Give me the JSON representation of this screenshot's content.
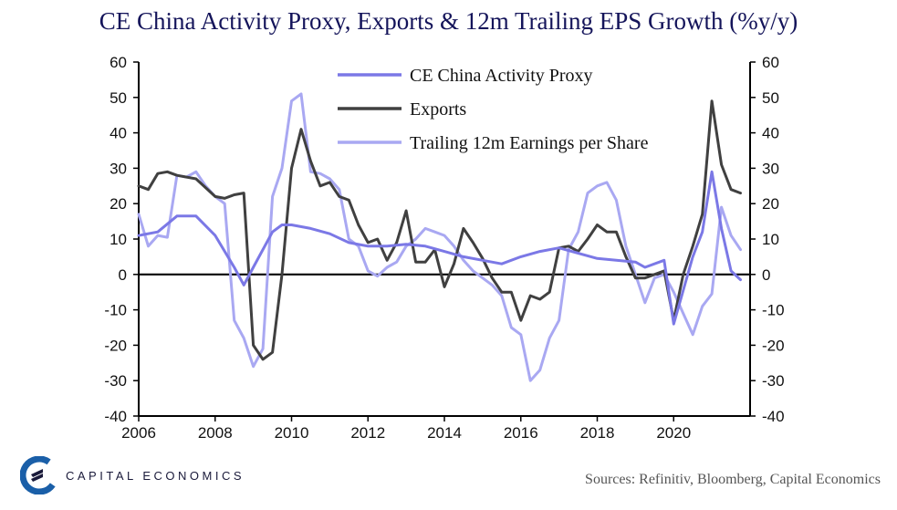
{
  "title": "CE China Activity Proxy, Exports & 12m Trailing EPS Growth (%y/y)",
  "source": "Sources: Refinitiv, Bloomberg, Capital Economics",
  "logo_text": "CAPITAL ECONOMICS",
  "colors": {
    "activity": "#7b78e6",
    "exports": "#404040",
    "eps": "#a9a8f2",
    "logo": "#1a5fa8"
  },
  "chart_data": {
    "type": "line",
    "xlim": [
      2006,
      2022
    ],
    "x_ticks": [
      2006,
      2008,
      2010,
      2012,
      2014,
      2016,
      2018,
      2020
    ],
    "ylim": [
      -40,
      60
    ],
    "y_ticks": [
      60,
      50,
      40,
      30,
      20,
      10,
      0,
      -10,
      -20,
      -30,
      -40
    ],
    "zero_line": true,
    "grid": false,
    "legend_position": "top-center",
    "series": [
      {
        "name": "CE China Activity Proxy",
        "color": "#7b78e6",
        "points": [
          [
            2006.0,
            11
          ],
          [
            2006.5,
            12
          ],
          [
            2007.0,
            16.5
          ],
          [
            2007.5,
            16.5
          ],
          [
            2008.0,
            11
          ],
          [
            2008.5,
            2
          ],
          [
            2008.75,
            -3
          ],
          [
            2009.0,
            2
          ],
          [
            2009.5,
            12
          ],
          [
            2009.75,
            14
          ],
          [
            2010.0,
            14
          ],
          [
            2010.5,
            13
          ],
          [
            2011.0,
            11.5
          ],
          [
            2011.5,
            9
          ],
          [
            2012.0,
            8
          ],
          [
            2012.5,
            8
          ],
          [
            2013.0,
            8.5
          ],
          [
            2013.5,
            8
          ],
          [
            2014.0,
            6.5
          ],
          [
            2014.5,
            5
          ],
          [
            2015.0,
            4
          ],
          [
            2015.5,
            3
          ],
          [
            2016.0,
            5
          ],
          [
            2016.5,
            6.5
          ],
          [
            2017.0,
            7.5
          ],
          [
            2017.5,
            6
          ],
          [
            2018.0,
            4.5
          ],
          [
            2018.5,
            4
          ],
          [
            2019.0,
            3.5
          ],
          [
            2019.25,
            2
          ],
          [
            2019.75,
            4
          ],
          [
            2020.0,
            -14
          ],
          [
            2020.5,
            5
          ],
          [
            2020.75,
            12
          ],
          [
            2021.0,
            29
          ],
          [
            2021.25,
            13
          ],
          [
            2021.5,
            1
          ],
          [
            2021.75,
            -1.5
          ]
        ]
      },
      {
        "name": "Exports",
        "color": "#404040",
        "points": [
          [
            2006.0,
            25
          ],
          [
            2006.25,
            24
          ],
          [
            2006.5,
            28.5
          ],
          [
            2006.75,
            29
          ],
          [
            2007.0,
            28
          ],
          [
            2007.5,
            27
          ],
          [
            2008.0,
            22
          ],
          [
            2008.25,
            21.5
          ],
          [
            2008.5,
            22.5
          ],
          [
            2008.75,
            23
          ],
          [
            2009.0,
            -20
          ],
          [
            2009.25,
            -24
          ],
          [
            2009.5,
            -22
          ],
          [
            2009.75,
            0
          ],
          [
            2010.0,
            30
          ],
          [
            2010.25,
            41
          ],
          [
            2010.5,
            32
          ],
          [
            2010.75,
            25
          ],
          [
            2011.0,
            26
          ],
          [
            2011.25,
            22
          ],
          [
            2011.5,
            21
          ],
          [
            2011.75,
            14
          ],
          [
            2012.0,
            9
          ],
          [
            2012.25,
            10
          ],
          [
            2012.5,
            4
          ],
          [
            2012.75,
            9
          ],
          [
            2013.0,
            18
          ],
          [
            2013.25,
            3.5
          ],
          [
            2013.5,
            3.5
          ],
          [
            2013.75,
            7
          ],
          [
            2014.0,
            -3.5
          ],
          [
            2014.25,
            3
          ],
          [
            2014.5,
            13
          ],
          [
            2014.75,
            9
          ],
          [
            2015.0,
            4.5
          ],
          [
            2015.25,
            -1
          ],
          [
            2015.5,
            -5
          ],
          [
            2015.75,
            -5
          ],
          [
            2016.0,
            -13
          ],
          [
            2016.25,
            -6
          ],
          [
            2016.5,
            -7
          ],
          [
            2016.75,
            -5
          ],
          [
            2017.0,
            7.5
          ],
          [
            2017.25,
            8
          ],
          [
            2017.5,
            6.5
          ],
          [
            2017.75,
            10
          ],
          [
            2018.0,
            14
          ],
          [
            2018.25,
            12
          ],
          [
            2018.5,
            12
          ],
          [
            2018.75,
            5
          ],
          [
            2019.0,
            -1
          ],
          [
            2019.25,
            -1
          ],
          [
            2019.5,
            0
          ],
          [
            2019.75,
            1
          ],
          [
            2020.0,
            -13
          ],
          [
            2020.25,
            0
          ],
          [
            2020.5,
            8
          ],
          [
            2020.75,
            17
          ],
          [
            2021.0,
            49
          ],
          [
            2021.25,
            31
          ],
          [
            2021.5,
            24
          ],
          [
            2021.75,
            23
          ]
        ]
      },
      {
        "name": "Trailing 12m Earnings per Share",
        "color": "#a9a8f2",
        "points": [
          [
            2006.0,
            17
          ],
          [
            2006.25,
            8
          ],
          [
            2006.5,
            11
          ],
          [
            2006.75,
            10.5
          ],
          [
            2007.0,
            28
          ],
          [
            2007.25,
            27.5
          ],
          [
            2007.5,
            29
          ],
          [
            2007.75,
            25
          ],
          [
            2008.0,
            22
          ],
          [
            2008.25,
            20
          ],
          [
            2008.5,
            -13
          ],
          [
            2008.75,
            -18
          ],
          [
            2009.0,
            -26
          ],
          [
            2009.25,
            -21
          ],
          [
            2009.5,
            22
          ],
          [
            2009.75,
            30
          ],
          [
            2010.0,
            49
          ],
          [
            2010.25,
            51
          ],
          [
            2010.5,
            29
          ],
          [
            2010.75,
            28.5
          ],
          [
            2011.0,
            27
          ],
          [
            2011.25,
            24
          ],
          [
            2011.5,
            10
          ],
          [
            2011.75,
            8
          ],
          [
            2012.0,
            1
          ],
          [
            2012.25,
            -0.5
          ],
          [
            2012.5,
            2
          ],
          [
            2012.75,
            3.5
          ],
          [
            2013.0,
            8
          ],
          [
            2013.25,
            10
          ],
          [
            2013.5,
            13
          ],
          [
            2013.75,
            12
          ],
          [
            2014.0,
            11
          ],
          [
            2014.25,
            8
          ],
          [
            2014.5,
            4
          ],
          [
            2014.75,
            1
          ],
          [
            2015.0,
            -1
          ],
          [
            2015.25,
            -3
          ],
          [
            2015.5,
            -6
          ],
          [
            2015.75,
            -15
          ],
          [
            2016.0,
            -17
          ],
          [
            2016.25,
            -30
          ],
          [
            2016.5,
            -27
          ],
          [
            2016.75,
            -18
          ],
          [
            2017.0,
            -13
          ],
          [
            2017.25,
            7
          ],
          [
            2017.5,
            12
          ],
          [
            2017.75,
            23
          ],
          [
            2018.0,
            25
          ],
          [
            2018.25,
            26
          ],
          [
            2018.5,
            21
          ],
          [
            2018.75,
            8
          ],
          [
            2019.0,
            0
          ],
          [
            2019.25,
            -8
          ],
          [
            2019.5,
            -1
          ],
          [
            2019.75,
            0
          ],
          [
            2020.0,
            -5
          ],
          [
            2020.25,
            -11
          ],
          [
            2020.5,
            -17
          ],
          [
            2020.75,
            -9
          ],
          [
            2021.0,
            -5.5
          ],
          [
            2021.25,
            19
          ],
          [
            2021.5,
            11
          ],
          [
            2021.75,
            7
          ]
        ]
      }
    ]
  }
}
